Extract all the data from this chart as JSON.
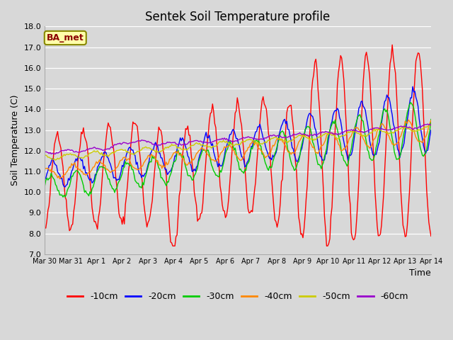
{
  "title": "Sentek Soil Temperature profile",
  "xlabel": "Time",
  "ylabel": "Soil Temperature (C)",
  "ylim": [
    7.0,
    18.0
  ],
  "yticks": [
    7.0,
    8.0,
    9.0,
    10.0,
    11.0,
    12.0,
    13.0,
    14.0,
    15.0,
    16.0,
    17.0,
    18.0
  ],
  "xtick_labels": [
    "Mar 30",
    "Mar 31",
    "Apr 1",
    "Apr 2",
    "Apr 3",
    "Apr 4",
    "Apr 5",
    "Apr 6",
    "Apr 7",
    "Apr 8",
    "Apr 9",
    "Apr 10",
    "Apr 11",
    "Apr 12",
    "Apr 13",
    "Apr 14"
  ],
  "legend_label": "BA_met",
  "series_labels": [
    "-10cm",
    "-20cm",
    "-30cm",
    "-40cm",
    "-50cm",
    "-60cm"
  ],
  "series_colors": [
    "#ff0000",
    "#0000ff",
    "#00cc00",
    "#ff8800",
    "#cccc00",
    "#9900cc"
  ],
  "bg_color": "#d8d8d8",
  "title_fontsize": 12,
  "axis_label_fontsize": 9,
  "tick_fontsize": 8,
  "xtick_fontsize": 7,
  "legend_fontsize": 9,
  "annotation_text_color": "#8B0000",
  "annotation_box_facecolor": "#ffffaa",
  "annotation_box_edgecolor": "#888800",
  "line_width": 1.0,
  "grid_color": "#ffffff",
  "n_days": 15,
  "n_pts": 360
}
